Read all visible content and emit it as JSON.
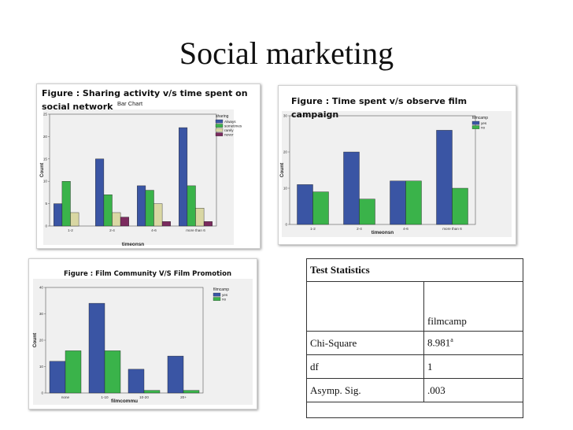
{
  "title": "Social marketing",
  "charts": [
    {
      "caption": "Figure  : Sharing activity v/s time spent on social network",
      "caption_lines": [
        "Figure  : Sharing activity v/s time spent on",
        "social network"
      ],
      "inner_title": "Bar Chart"
    },
    {
      "caption": "Figure  : Time spent v/s observe film campaign",
      "caption_lines": [
        "Figure  : Time spent v/s observe film",
        "campaign"
      ]
    },
    {
      "caption": "Figure : Film Community V/S Film Promotion"
    }
  ],
  "chart_data": [
    {
      "type": "bar",
      "title": "Bar Chart",
      "xlabel": "timeonsn",
      "ylabel": "Count",
      "categories": [
        "1-2",
        "2-4",
        "4-6",
        "more than 6"
      ],
      "ylim": [
        0,
        25
      ],
      "yticks": [
        0,
        5,
        10,
        15,
        20,
        25
      ],
      "legend_title": "sharing",
      "legend_position": "top-right",
      "grid": false,
      "series": [
        {
          "name": "Always",
          "color": "#3a55a4",
          "values": [
            5,
            15,
            9,
            22
          ]
        },
        {
          "name": "sometimes",
          "color": "#3ab34a",
          "values": [
            10,
            7,
            8,
            9
          ]
        },
        {
          "name": "rarely",
          "color": "#d9d7a3",
          "values": [
            3,
            3,
            5,
            4
          ]
        },
        {
          "name": "never",
          "color": "#7b2a5e",
          "values": [
            0,
            2,
            1,
            1
          ]
        }
      ]
    },
    {
      "type": "bar",
      "xlabel": "timeonsn",
      "ylabel": "Count",
      "categories": [
        "1-2",
        "2-4",
        "4-6",
        "more than 6"
      ],
      "ylim": [
        0,
        30
      ],
      "yticks": [
        0,
        10,
        20,
        30
      ],
      "legend_title": "filmcamp",
      "legend_position": "top-right",
      "grid": false,
      "series": [
        {
          "name": "yes",
          "color": "#3a55a4",
          "values": [
            11,
            20,
            12,
            26
          ]
        },
        {
          "name": "no",
          "color": "#3ab34a",
          "values": [
            9,
            7,
            12,
            10
          ]
        }
      ]
    },
    {
      "type": "bar",
      "xlabel": "filmcommu",
      "ylabel": "Count",
      "categories": [
        "none",
        "1-10",
        "10-20",
        "20+"
      ],
      "ylim": [
        0,
        40
      ],
      "yticks": [
        0,
        10,
        20,
        30,
        40
      ],
      "legend_title": "filmcamp",
      "legend_position": "top-right",
      "grid": false,
      "series": [
        {
          "name": "yes",
          "color": "#3a55a4",
          "values": [
            12,
            34,
            9,
            14
          ]
        },
        {
          "name": "no",
          "color": "#3ab34a",
          "values": [
            16,
            16,
            1,
            1
          ]
        }
      ]
    },
    {
      "type": "table",
      "title": "Test Statistics",
      "columns": [
        "",
        "filmcamp"
      ],
      "rows": [
        [
          "Chi-Square",
          "8.981"
        ],
        [
          "df",
          "1"
        ],
        [
          "Asymp. Sig.",
          ".003"
        ]
      ],
      "footnote_marker": "a"
    }
  ]
}
